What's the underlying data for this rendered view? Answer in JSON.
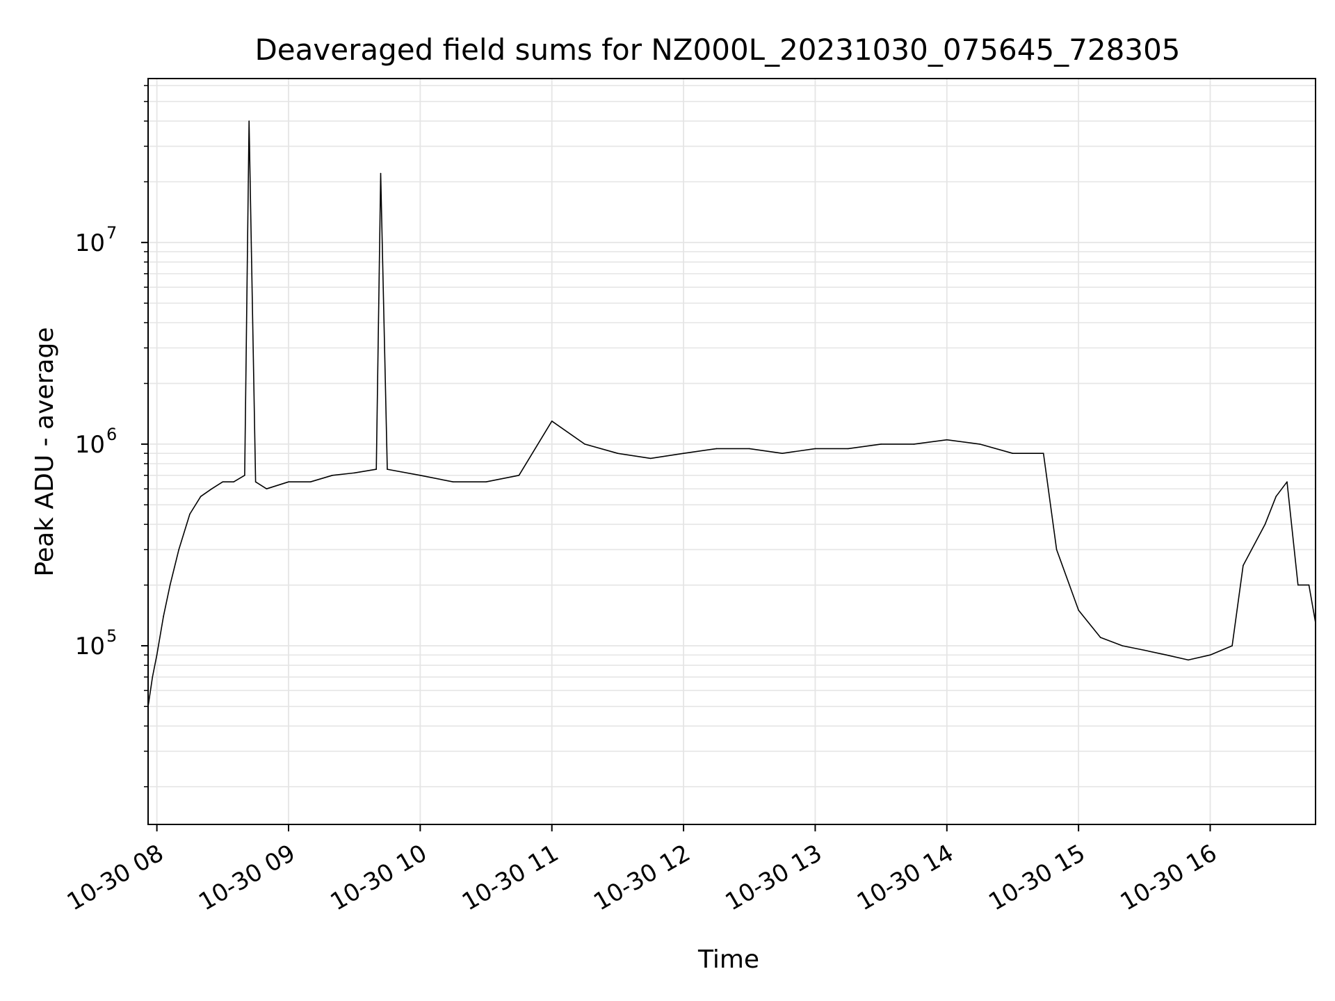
{
  "chart_data": {
    "type": "line",
    "title": "Deaveraged field sums for NZ000L_20231030_075645_728305",
    "xlabel": "Time",
    "ylabel": "Peak ADU - average",
    "yscale": "log",
    "ylim": [
      13000,
      65000000
    ],
    "xlim": [
      "2023-10-30 07:56",
      "2023-10-30 16:48"
    ],
    "grid": true,
    "line_color": "#000000",
    "grid_color": "#e5e5e5",
    "x_ticks": [
      {
        "value": "2023-10-30 08:00",
        "label": "10-30 08"
      },
      {
        "value": "2023-10-30 09:00",
        "label": "10-30 09"
      },
      {
        "value": "2023-10-30 10:00",
        "label": "10-30 10"
      },
      {
        "value": "2023-10-30 11:00",
        "label": "10-30 11"
      },
      {
        "value": "2023-10-30 12:00",
        "label": "10-30 12"
      },
      {
        "value": "2023-10-30 13:00",
        "label": "10-30 13"
      },
      {
        "value": "2023-10-30 14:00",
        "label": "10-30 14"
      },
      {
        "value": "2023-10-30 15:00",
        "label": "10-30 15"
      },
      {
        "value": "2023-10-30 16:00",
        "label": "10-30 16"
      }
    ],
    "y_ticks": [
      {
        "value": 100000,
        "base": "10",
        "exp": "5"
      },
      {
        "value": 1000000,
        "base": "10",
        "exp": "6"
      },
      {
        "value": 10000000,
        "base": "10",
        "exp": "7"
      }
    ],
    "series": [
      {
        "x": [
          "2023-10-30 07:56",
          "2023-10-30 07:58",
          "2023-10-30 08:00",
          "2023-10-30 08:03",
          "2023-10-30 08:06",
          "2023-10-30 08:10",
          "2023-10-30 08:15",
          "2023-10-30 08:20",
          "2023-10-30 08:25",
          "2023-10-30 08:30",
          "2023-10-30 08:35",
          "2023-10-30 08:40",
          "2023-10-30 08:42",
          "2023-10-30 08:45",
          "2023-10-30 08:50",
          "2023-10-30 09:00",
          "2023-10-30 09:10",
          "2023-10-30 09:20",
          "2023-10-30 09:30",
          "2023-10-30 09:40",
          "2023-10-30 09:42",
          "2023-10-30 09:45",
          "2023-10-30 10:00",
          "2023-10-30 10:15",
          "2023-10-30 10:30",
          "2023-10-30 10:45",
          "2023-10-30 11:00",
          "2023-10-30 11:15",
          "2023-10-30 11:30",
          "2023-10-30 11:45",
          "2023-10-30 12:00",
          "2023-10-30 12:15",
          "2023-10-30 12:30",
          "2023-10-30 12:45",
          "2023-10-30 13:00",
          "2023-10-30 13:15",
          "2023-10-30 13:30",
          "2023-10-30 13:45",
          "2023-10-30 14:00",
          "2023-10-30 14:15",
          "2023-10-30 14:30",
          "2023-10-30 14:44",
          "2023-10-30 14:50",
          "2023-10-30 15:00",
          "2023-10-30 15:10",
          "2023-10-30 15:20",
          "2023-10-30 15:30",
          "2023-10-30 15:40",
          "2023-10-30 15:50",
          "2023-10-30 16:00",
          "2023-10-30 16:10",
          "2023-10-30 16:15",
          "2023-10-30 16:25",
          "2023-10-30 16:30",
          "2023-10-30 16:35",
          "2023-10-30 16:40",
          "2023-10-30 16:45",
          "2023-10-30 16:48"
        ],
        "y": [
          50000,
          70000,
          90000,
          140000,
          200000,
          300000,
          450000,
          550000,
          600000,
          650000,
          650000,
          700000,
          40000000,
          650000,
          600000,
          650000,
          650000,
          700000,
          720000,
          750000,
          22000000,
          750000,
          700000,
          650000,
          650000,
          700000,
          1300000,
          1000000,
          900000,
          850000,
          900000,
          950000,
          950000,
          900000,
          950000,
          950000,
          1000000,
          1000000,
          1050000,
          1000000,
          900000,
          900000,
          300000,
          150000,
          110000,
          100000,
          95000,
          90000,
          85000,
          90000,
          100000,
          250000,
          400000,
          550000,
          650000,
          200000,
          200000,
          130000
        ]
      }
    ]
  }
}
